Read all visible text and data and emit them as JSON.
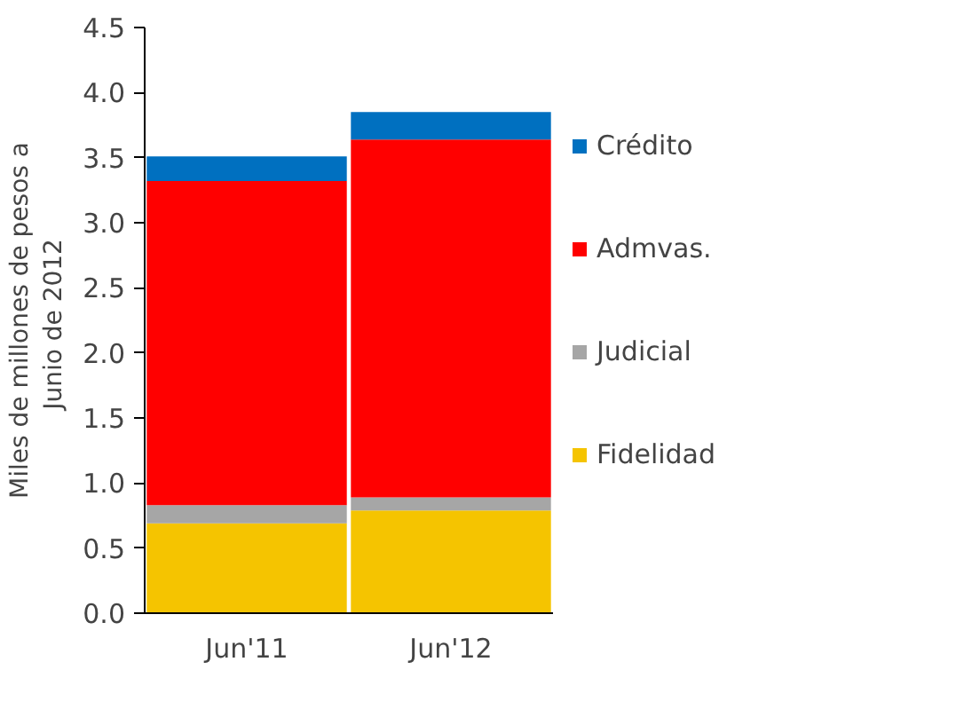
{
  "chart_data": {
    "type": "bar",
    "stacked": true,
    "ylabel": "Miles de millones de pesos a\nJunio de  2012",
    "categories": [
      "Jun'11",
      "Jun'12"
    ],
    "series": [
      {
        "name": "Fidelidad",
        "color": "#f5c400",
        "values": [
          0.69,
          0.79
        ]
      },
      {
        "name": "Judicial",
        "color": "#a6a6a6",
        "values": [
          0.14,
          0.1
        ]
      },
      {
        "name": "Admvas.",
        "color": "#ff0000",
        "values": [
          2.49,
          2.75
        ]
      },
      {
        "name": "Crédito",
        "color": "#0070c0",
        "values": [
          0.19,
          0.21
        ]
      }
    ],
    "ylim": [
      0,
      4.5
    ],
    "yticks": [
      {
        "value": 0,
        "label": "0.0"
      },
      {
        "value": 0.5,
        "label": "0.5"
      },
      {
        "value": 1,
        "label": "1.0"
      },
      {
        "value": 1.5,
        "label": "1.5"
      },
      {
        "value": 2,
        "label": "2.0"
      },
      {
        "value": 2.5,
        "label": "2.5"
      },
      {
        "value": 3,
        "label": "3.0"
      },
      {
        "value": 3.5,
        "label": "3.5"
      },
      {
        "value": 4,
        "label": "4.0"
      },
      {
        "value": 4.5,
        "label": "4.5"
      }
    ],
    "grid": false,
    "legend": "right"
  }
}
